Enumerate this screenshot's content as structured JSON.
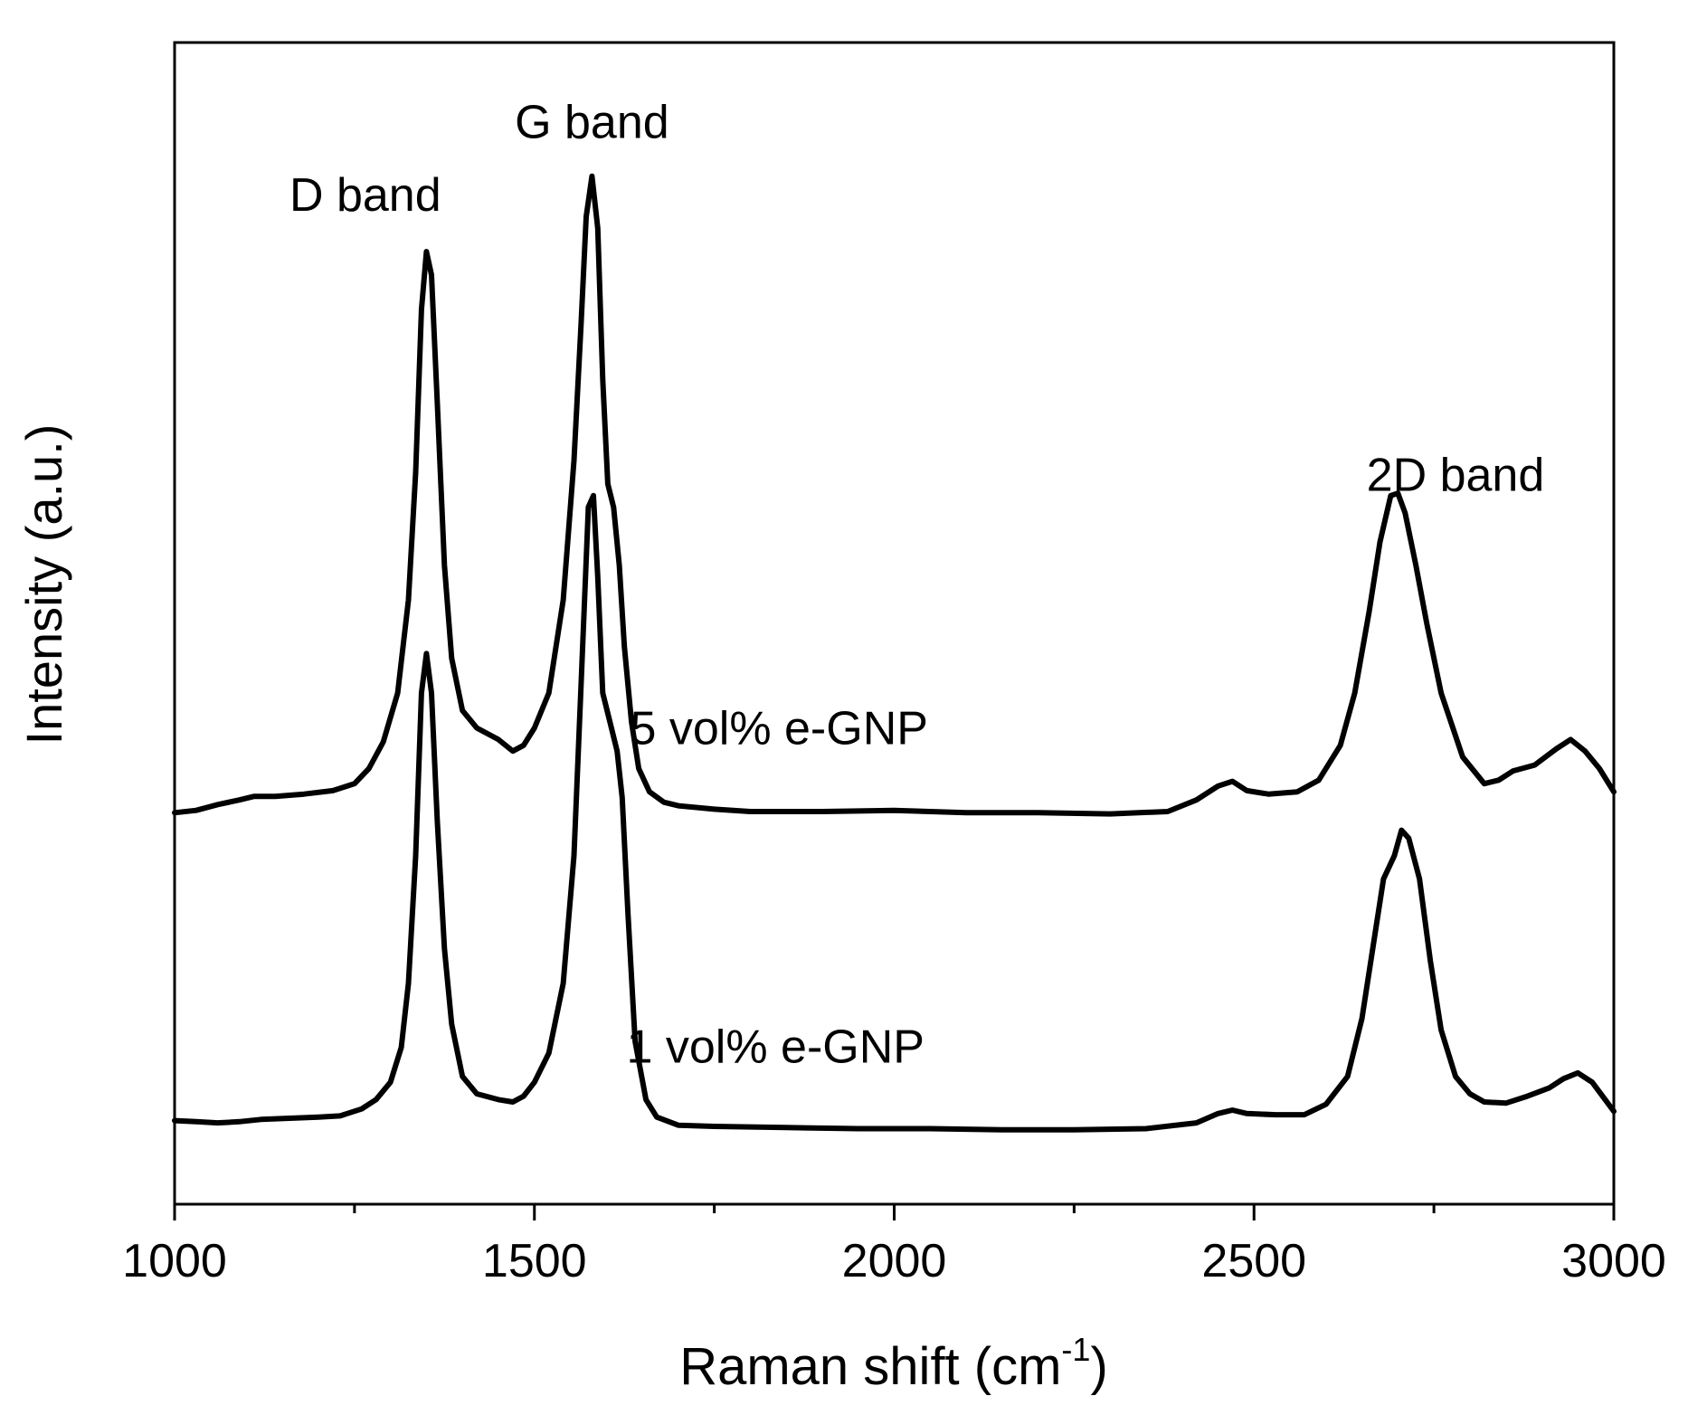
{
  "chart_data": {
    "type": "line",
    "title": "",
    "xlabel": "Raman shift (cm",
    "xlabel_sup": "-1",
    "xlabel_close": ")",
    "ylabel": "Intensity (a.u.)",
    "xlim": [
      1000,
      3000
    ],
    "ylim": [
      0,
      1.0
    ],
    "grid": false,
    "x_ticks": [
      {
        "value": 1000,
        "label": "1000"
      },
      {
        "value": 1500,
        "label": "1500"
      },
      {
        "value": 2000,
        "label": "2000"
      },
      {
        "value": 2500,
        "label": "2500"
      },
      {
        "value": 3000,
        "label": "3000"
      }
    ],
    "x_minor_ticks": [
      1250,
      1750,
      2250,
      2750
    ],
    "annotations": [
      {
        "text": "D band",
        "x": 1265,
        "y": 0.855
      },
      {
        "text": "G band",
        "x": 1580,
        "y": 0.918
      },
      {
        "text": "2D band",
        "x": 2780,
        "y": 0.614
      },
      {
        "text": "5 vol% e-GNP",
        "x": 1840,
        "y": 0.396
      },
      {
        "text": "1 vol% e-GNP",
        "x": 1835,
        "y": 0.122
      }
    ],
    "series": [
      {
        "name": "5 vol% e-GNP",
        "x": [
          1000,
          1030,
          1060,
          1090,
          1110,
          1140,
          1180,
          1220,
          1250,
          1270,
          1290,
          1310,
          1325,
          1335,
          1343,
          1350,
          1357,
          1365,
          1375,
          1385,
          1400,
          1420,
          1450,
          1470,
          1485,
          1500,
          1520,
          1540,
          1555,
          1565,
          1572,
          1580,
          1588,
          1595,
          1602,
          1610,
          1618,
          1625,
          1635,
          1645,
          1660,
          1680,
          1700,
          1750,
          1800,
          1900,
          2000,
          2100,
          2200,
          2300,
          2380,
          2420,
          2450,
          2470,
          2490,
          2520,
          2560,
          2590,
          2620,
          2640,
          2660,
          2675,
          2690,
          2700,
          2710,
          2725,
          2740,
          2760,
          2790,
          2820,
          2840,
          2860,
          2890,
          2920,
          2940,
          2960,
          2980,
          3000
        ],
        "y": [
          0.337,
          0.339,
          0.344,
          0.348,
          0.351,
          0.351,
          0.353,
          0.356,
          0.362,
          0.375,
          0.398,
          0.44,
          0.52,
          0.63,
          0.77,
          0.82,
          0.8,
          0.69,
          0.55,
          0.47,
          0.425,
          0.41,
          0.4,
          0.39,
          0.395,
          0.41,
          0.44,
          0.52,
          0.64,
          0.76,
          0.85,
          0.885,
          0.84,
          0.71,
          0.62,
          0.6,
          0.55,
          0.48,
          0.415,
          0.375,
          0.355,
          0.346,
          0.343,
          0.34,
          0.338,
          0.338,
          0.339,
          0.337,
          0.337,
          0.336,
          0.338,
          0.348,
          0.36,
          0.364,
          0.356,
          0.353,
          0.355,
          0.365,
          0.395,
          0.44,
          0.51,
          0.57,
          0.61,
          0.612,
          0.595,
          0.55,
          0.5,
          0.44,
          0.385,
          0.362,
          0.365,
          0.373,
          0.378,
          0.392,
          0.4,
          0.39,
          0.375,
          0.355
        ]
      },
      {
        "name": "1 vol% e-GNP",
        "x": [
          1000,
          1030,
          1060,
          1090,
          1120,
          1160,
          1200,
          1230,
          1260,
          1280,
          1300,
          1315,
          1325,
          1335,
          1343,
          1350,
          1357,
          1365,
          1375,
          1385,
          1400,
          1420,
          1450,
          1470,
          1485,
          1500,
          1520,
          1540,
          1555,
          1565,
          1575,
          1582,
          1588,
          1595,
          1605,
          1615,
          1622,
          1630,
          1640,
          1655,
          1670,
          1700,
          1750,
          1850,
          1950,
          2050,
          2150,
          2250,
          2350,
          2420,
          2450,
          2470,
          2490,
          2530,
          2570,
          2600,
          2630,
          2650,
          2665,
          2680,
          2695,
          2705,
          2715,
          2730,
          2745,
          2760,
          2780,
          2800,
          2820,
          2850,
          2880,
          2910,
          2930,
          2950,
          2970,
          3000
        ],
        "y": [
          0.072,
          0.071,
          0.07,
          0.071,
          0.073,
          0.074,
          0.075,
          0.076,
          0.082,
          0.09,
          0.105,
          0.135,
          0.19,
          0.3,
          0.44,
          0.474,
          0.44,
          0.33,
          0.22,
          0.155,
          0.11,
          0.095,
          0.09,
          0.088,
          0.093,
          0.105,
          0.13,
          0.19,
          0.3,
          0.45,
          0.6,
          0.61,
          0.54,
          0.44,
          0.415,
          0.39,
          0.35,
          0.25,
          0.14,
          0.09,
          0.075,
          0.068,
          0.067,
          0.066,
          0.065,
          0.065,
          0.064,
          0.064,
          0.065,
          0.07,
          0.078,
          0.081,
          0.078,
          0.077,
          0.077,
          0.086,
          0.11,
          0.16,
          0.22,
          0.28,
          0.3,
          0.322,
          0.315,
          0.28,
          0.21,
          0.15,
          0.11,
          0.095,
          0.088,
          0.087,
          0.093,
          0.1,
          0.108,
          0.113,
          0.105,
          0.08
        ]
      }
    ]
  }
}
